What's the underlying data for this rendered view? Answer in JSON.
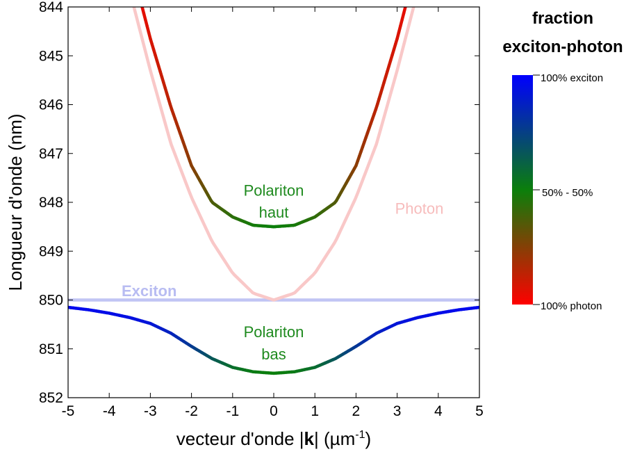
{
  "chart_data": {
    "type": "line",
    "xlabel_main": "vecteur d'onde |",
    "xlabel_bold": "k",
    "xlabel_unit_open": "| (µm",
    "xlabel_sup": "-1",
    "xlabel_close": ")",
    "ylabel": "Longueur d'onde (nm)",
    "xlim": [
      -5,
      5
    ],
    "ylim": [
      844,
      852
    ],
    "y_inverted": true,
    "x_ticks": [
      "-5",
      "-4",
      "-3",
      "-2",
      "-1",
      "0",
      "1",
      "2",
      "3",
      "4",
      "5"
    ],
    "y_ticks": [
      "844",
      "845",
      "846",
      "847",
      "848",
      "849",
      "850",
      "851",
      "852"
    ],
    "grid": false,
    "series": [
      {
        "name": "Exciton",
        "color": "#c0c4f4",
        "x": [
          -5,
          5
        ],
        "y": [
          850.0,
          850.0
        ]
      },
      {
        "name": "Photon",
        "color": "#f9c8c8",
        "x": [
          -3.4,
          -3.0,
          -2.5,
          -2.0,
          -1.5,
          -1.0,
          -0.5,
          0,
          0.5,
          1.0,
          1.5,
          2.0,
          2.5,
          3.0,
          3.4
        ],
        "y": [
          844.0,
          845.3,
          846.8,
          847.9,
          848.8,
          849.45,
          849.86,
          850.0,
          849.86,
          849.45,
          848.8,
          847.9,
          846.8,
          845.3,
          844.0
        ]
      },
      {
        "name": "Polariton haut",
        "x": [
          -3.2,
          -3.0,
          -2.5,
          -2.0,
          -1.5,
          -1.0,
          -0.5,
          0,
          0.5,
          1.0,
          1.5,
          2.0,
          2.5,
          3.0,
          3.2
        ],
        "y": [
          844.0,
          844.65,
          846.05,
          847.25,
          848.0,
          848.3,
          848.47,
          848.5,
          848.47,
          848.3,
          848.0,
          847.25,
          846.05,
          844.65,
          844.0
        ],
        "exciton_fraction": [
          0.05,
          0.08,
          0.14,
          0.24,
          0.36,
          0.43,
          0.48,
          0.5,
          0.48,
          0.43,
          0.36,
          0.24,
          0.14,
          0.08,
          0.05
        ]
      },
      {
        "name": "Polariton bas",
        "x": [
          -5,
          -4.5,
          -4.0,
          -3.5,
          -3.0,
          -2.5,
          -2.0,
          -1.5,
          -1.0,
          -0.5,
          0,
          0.5,
          1.0,
          1.5,
          2.0,
          2.5,
          3.0,
          3.5,
          4.0,
          4.5,
          5
        ],
        "y": [
          850.15,
          850.2,
          850.27,
          850.36,
          850.48,
          850.68,
          850.95,
          851.2,
          851.38,
          851.47,
          851.5,
          851.47,
          851.38,
          851.2,
          850.95,
          850.68,
          850.48,
          850.36,
          850.27,
          850.2,
          850.15
        ],
        "exciton_fraction": [
          0.97,
          0.96,
          0.95,
          0.94,
          0.92,
          0.87,
          0.78,
          0.66,
          0.57,
          0.52,
          0.5,
          0.52,
          0.57,
          0.66,
          0.78,
          0.87,
          0.92,
          0.94,
          0.95,
          0.96,
          0.97
        ]
      }
    ],
    "annotations": [
      {
        "id": "polariton-haut-line1",
        "text": "Polariton",
        "x": 0,
        "y": 847.75,
        "color": "#1e8a1e"
      },
      {
        "id": "polariton-haut-line2",
        "text": "haut",
        "x": 0,
        "y": 848.2,
        "color": "#1e8a1e"
      },
      {
        "id": "polariton-bas-line1",
        "text": "Polariton",
        "x": 0,
        "y": 850.65,
        "color": "#1e8a1e"
      },
      {
        "id": "polariton-bas-line2",
        "text": "bas",
        "x": 0,
        "y": 851.1,
        "color": "#1e8a1e"
      },
      {
        "id": "photon-label",
        "text": "Photon",
        "x": 2.95,
        "y": 848.12,
        "color": "#f7bcbc"
      },
      {
        "id": "exciton-label",
        "text": "Exciton",
        "x": -3.7,
        "y": 849.81,
        "color": "#b8bcf2"
      }
    ],
    "colorbar": {
      "title_line1": "fraction",
      "title_line2": "exciton-photon",
      "top_label": "100% exciton",
      "mid_label": "50% - 50%",
      "bottom_label": "100% photon",
      "colors": [
        "#0000ff",
        "#0b7f0b",
        "#ff0000"
      ]
    }
  }
}
